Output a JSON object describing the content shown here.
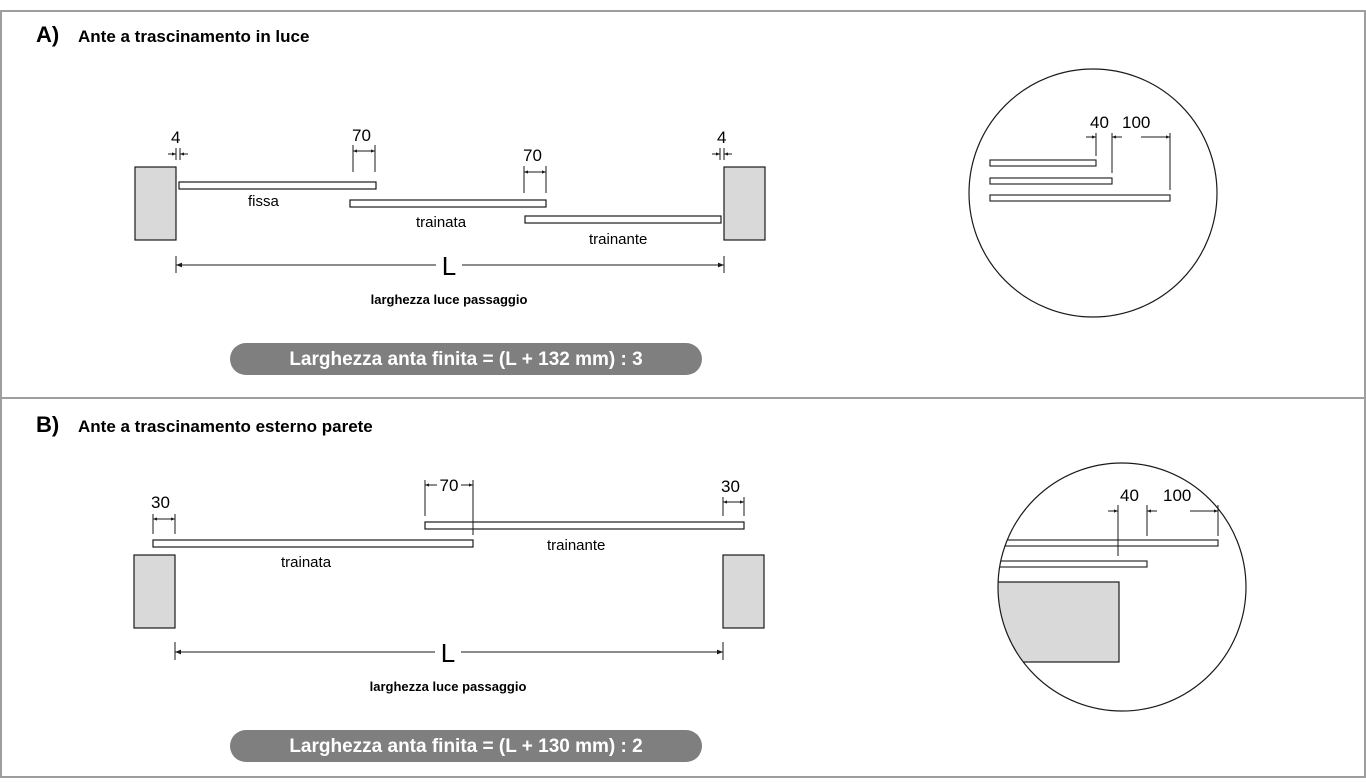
{
  "section_a": {
    "letter": "A)",
    "title": "Ante a trascinamento in luce",
    "dims": {
      "left_gap": "4",
      "overlap_1": "70",
      "overlap_2": "70",
      "right_gap": "4"
    },
    "panel_labels": {
      "fixed": "fissa",
      "towed": "trainata",
      "towing": "trainante"
    },
    "width_symbol": "L",
    "width_caption": "larghezza luce passaggio",
    "formula": "Larghezza anta finita = (L + 132 mm) : 3",
    "detail_dims": {
      "first": "40",
      "second": "100"
    }
  },
  "section_b": {
    "letter": "B)",
    "title": "Ante a trascinamento esterno parete",
    "dims": {
      "left_overlap": "30",
      "overlap": "70",
      "right_overlap": "30"
    },
    "panel_labels": {
      "towed": "trainata",
      "towing": "trainante"
    },
    "width_symbol": "L",
    "width_caption": "larghezza luce passaggio",
    "formula": "Larghezza anta finita = (L + 130 mm) : 2",
    "detail_dims": {
      "first": "40",
      "second": "100"
    }
  },
  "colors": {
    "frame": "#9e9e9e",
    "wall_fill": "#d9d9d9",
    "formula_pill": "#7f7f7f",
    "formula_text": "#ffffff",
    "line": "#1a1a1a"
  }
}
